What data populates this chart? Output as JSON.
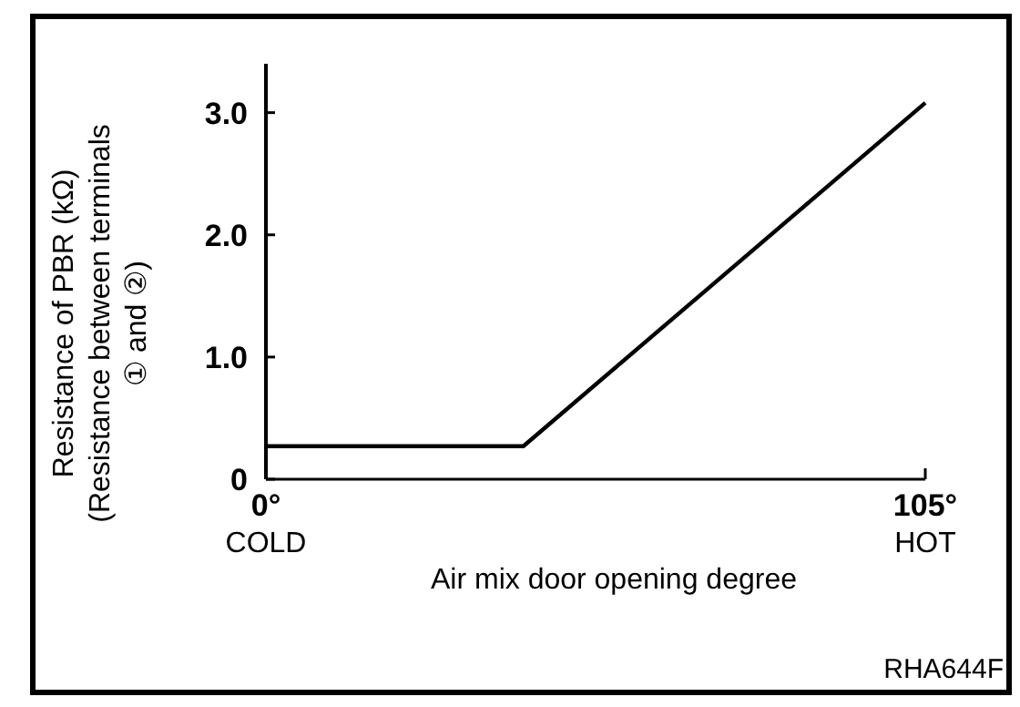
{
  "chart_data": {
    "type": "line",
    "xlabel": "Air mix door opening degree",
    "ylabel": "Resistance of PBR (kΩ)\n(Resistance between terminals\n① and ②)",
    "x": [
      0,
      41,
      105
    ],
    "values": [
      0.27,
      0.27,
      3.08
    ],
    "color": "#000000",
    "xlim": [
      0,
      105
    ],
    "xticks": [
      {
        "value": 0,
        "label": "0°\nCOLD"
      },
      {
        "value": 105,
        "label": "105°\nHOT"
      }
    ],
    "ylim": [
      0,
      3.4
    ],
    "yticks": [
      0,
      {
        "value": 1,
        "label": "1.0"
      },
      {
        "value": 2,
        "label": "2.0"
      },
      {
        "value": 3,
        "label": "3.0"
      }
    ],
    "grid": false,
    "marker": "none",
    "line_style": "solid",
    "annotations": [
      "RHA644F"
    ]
  }
}
